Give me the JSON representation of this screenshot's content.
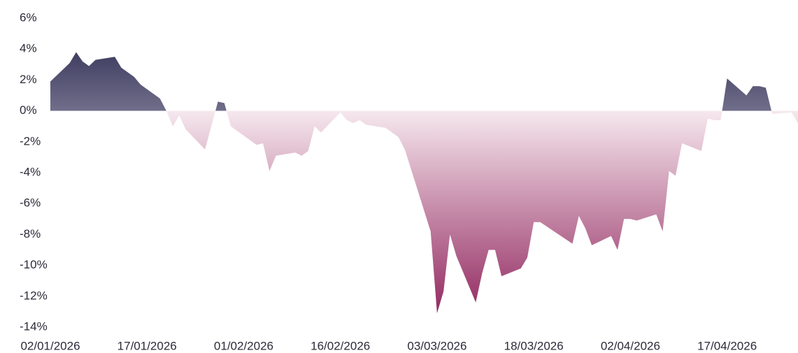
{
  "chart_data": {
    "type": "area",
    "x": [
      "02/01/2026",
      "05/01/2026",
      "06/01/2026",
      "07/01/2026",
      "08/01/2026",
      "09/01/2026",
      "12/01/2026",
      "13/01/2026",
      "15/01/2026",
      "16/01/2026",
      "19/01/2026",
      "20/01/2026",
      "21/01/2026",
      "22/01/2026",
      "23/01/2026",
      "26/01/2026",
      "28/01/2026",
      "29/01/2026",
      "30/01/2026",
      "01/02/2026",
      "03/02/2026",
      "04/02/2026",
      "05/02/2026",
      "06/02/2026",
      "09/02/2026",
      "10/02/2026",
      "11/02/2026",
      "12/02/2026",
      "13/02/2026",
      "16/02/2026",
      "17/02/2026",
      "18/02/2026",
      "19/02/2026",
      "20/02/2026",
      "23/02/2026",
      "25/02/2026",
      "26/02/2026",
      "02/03/2026",
      "03/03/2026",
      "04/03/2026",
      "05/03/2026",
      "06/03/2026",
      "09/03/2026",
      "10/03/2026",
      "11/03/2026",
      "12/03/2026",
      "13/03/2026",
      "16/03/2026",
      "17/03/2026",
      "18/03/2026",
      "19/03/2026",
      "24/03/2026",
      "25/03/2026",
      "26/03/2026",
      "27/03/2026",
      "30/03/2026",
      "31/03/2026",
      "01/04/2026",
      "02/04/2026",
      "03/04/2026",
      "06/04/2026",
      "07/04/2026",
      "08/04/2026",
      "09/04/2026",
      "10/04/2026",
      "13/04/2026",
      "14/04/2026",
      "15/04/2026",
      "16/04/2026",
      "17/04/2026",
      "20/04/2026",
      "21/04/2026",
      "22/04/2026",
      "23/04/2026",
      "24/04/2026",
      "27/04/2026",
      "28/04/2026"
    ],
    "values": [
      1.9,
      3.1,
      3.8,
      3.2,
      2.9,
      3.3,
      3.5,
      2.8,
      2.2,
      1.7,
      0.8,
      0,
      -1.0,
      -0.3,
      -1.2,
      -2.5,
      0.6,
      0.5,
      -1.0,
      -1.6,
      -2.2,
      -2.1,
      -3.9,
      -2.9,
      -2.7,
      -2.9,
      -2.6,
      -1.0,
      -1.4,
      -0.1,
      -0.6,
      -0.8,
      -0.6,
      -0.9,
      -1.1,
      -1.7,
      -2.5,
      -7.8,
      -13.1,
      -11.7,
      -8.0,
      -9.4,
      -12.4,
      -10.5,
      -9.0,
      -9.0,
      -10.7,
      -10.2,
      -9.5,
      -7.2,
      -7.2,
      -8.6,
      -6.8,
      -7.6,
      -8.7,
      -8.1,
      -9.0,
      -7.0,
      -7.0,
      -7.1,
      -6.7,
      -7.8,
      -3.9,
      -4.2,
      -2.1,
      -2.6,
      -0.5,
      -0.6,
      -0.6,
      2.1,
      1.0,
      1.6,
      1.6,
      1.5,
      -0.2,
      -0.1,
      -0.8
    ],
    "colors": {
      "positive_top": "#25234a",
      "positive_zero": "#706e8a",
      "negative_zero": "#f6e8ee",
      "negative_bottom": "#8c1d57"
    },
    "xlim": [
      "02/01/2026",
      "28/04/2026"
    ],
    "xticks": [
      "02/01/2026",
      "17/01/2026",
      "01/02/2026",
      "16/02/2026",
      "03/03/2026",
      "18/03/2026",
      "02/04/2026",
      "17/04/2026"
    ],
    "ylim": [
      -14,
      6
    ],
    "yticks": [
      {
        "value": 6,
        "label": "6%"
      },
      {
        "value": 4,
        "label": "4%"
      },
      {
        "value": 2,
        "label": "2%"
      },
      {
        "value": 0,
        "label": "0%"
      },
      {
        "value": -2,
        "label": "-2%"
      },
      {
        "value": -4,
        "label": "-4%"
      },
      {
        "value": -6,
        "label": "-6%"
      },
      {
        "value": -8,
        "label": "-8%"
      },
      {
        "value": -10,
        "label": "-10%"
      },
      {
        "value": -12,
        "label": "-12%"
      },
      {
        "value": -14,
        "label": "-14%"
      }
    ],
    "grid": false
  }
}
